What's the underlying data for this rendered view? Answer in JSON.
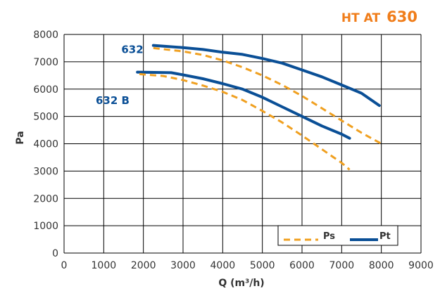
{
  "chart_data": {
    "type": "line",
    "title_prefix": "HT AT",
    "title_number": "630",
    "xlabel": "Q (m³/h)",
    "ylabel": "Pa",
    "xlim": [
      0,
      9000
    ],
    "ylim": [
      0,
      8000
    ],
    "xticks": [
      0,
      1000,
      2000,
      3000,
      4000,
      5000,
      6000,
      7000,
      8000,
      9000
    ],
    "yticks": [
      0,
      1000,
      2000,
      3000,
      4000,
      5000,
      6000,
      7000,
      8000
    ],
    "grid": true,
    "legend_position": "bottom-right",
    "model_labels": [
      {
        "text": "632",
        "x": 2000,
        "y": 7450
      },
      {
        "text": "632 B",
        "x": 1650,
        "y": 5580
      }
    ],
    "series": [
      {
        "name": "Pt",
        "model": "632",
        "style": "solid",
        "x": [
          2250,
          3000,
          3500,
          4000,
          4500,
          5000,
          5500,
          6000,
          6500,
          7000,
          7500,
          7950
        ],
        "y": [
          7600,
          7520,
          7450,
          7350,
          7270,
          7120,
          6950,
          6700,
          6450,
          6150,
          5850,
          5400
        ]
      },
      {
        "name": "Ps",
        "model": "632",
        "style": "dashed",
        "x": [
          2250,
          3000,
          3500,
          4000,
          4500,
          5000,
          5500,
          6000,
          6500,
          7000,
          7500,
          8000
        ],
        "y": [
          7500,
          7380,
          7250,
          7050,
          6800,
          6500,
          6150,
          5750,
          5300,
          4850,
          4400,
          4000
        ]
      },
      {
        "name": "Pt",
        "model": "632 B",
        "style": "solid",
        "x": [
          1850,
          2700,
          3000,
          3500,
          4000,
          4500,
          5000,
          5500,
          6000,
          6500,
          7000,
          7200
        ],
        "y": [
          6620,
          6600,
          6520,
          6380,
          6200,
          6000,
          5700,
          5350,
          5000,
          4650,
          4350,
          4200
        ]
      },
      {
        "name": "Ps",
        "model": "632 B",
        "style": "dashed",
        "x": [
          1900,
          2500,
          3000,
          3500,
          4000,
          4500,
          5000,
          5500,
          6000,
          6500,
          7000,
          7200
        ],
        "y": [
          6550,
          6480,
          6330,
          6130,
          5900,
          5600,
          5200,
          4780,
          4300,
          3800,
          3300,
          3050
        ]
      }
    ],
    "legend": [
      {
        "label": "Ps",
        "style": "dashed"
      },
      {
        "label": "Pt",
        "style": "solid"
      }
    ]
  },
  "colors": {
    "pt": "#0a4f96",
    "ps": "#f0a020",
    "title": "#f07d1a",
    "model_label": "#0a4f96",
    "grid": "#000000"
  }
}
